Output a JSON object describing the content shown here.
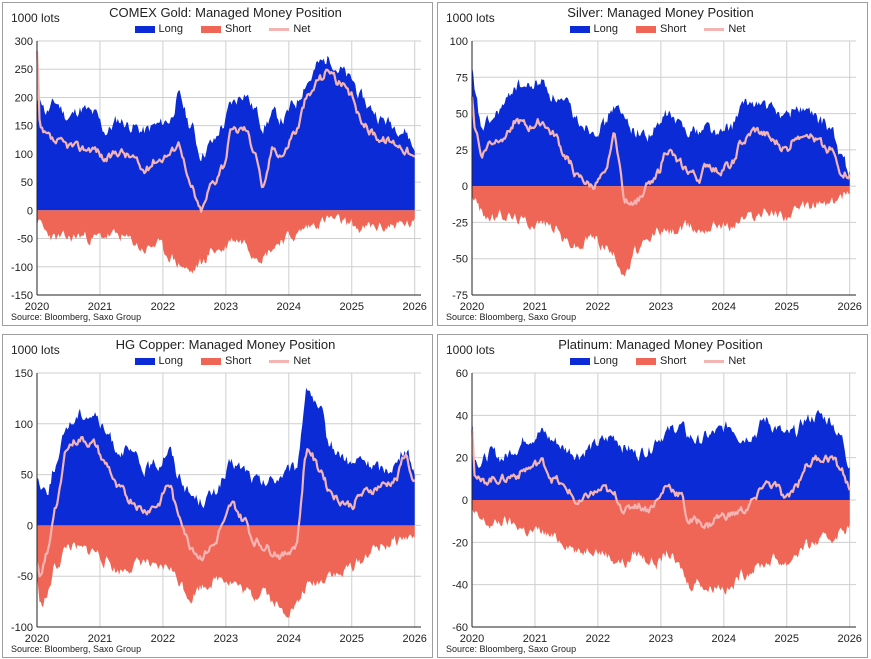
{
  "colors": {
    "long": "#0a2bd6",
    "short": "#ef6656",
    "net": "#f4b4b4",
    "grid": "#cfcfcf",
    "axis": "#222222"
  },
  "legend": {
    "long": "Long",
    "short": "Short",
    "net": "Net"
  },
  "chart_data": [
    {
      "type": "area",
      "title": "COMEX Gold: Managed Money Position",
      "unit_label": "1000 lots",
      "source": "Source:  Bloomberg,  Saxo Group",
      "ylim": [
        -150,
        300
      ],
      "yticks": [
        -150,
        -100,
        -50,
        0,
        50,
        100,
        150,
        200,
        250,
        300
      ],
      "x_range": [
        2020.0,
        2026.1
      ],
      "xticks": [
        2020,
        2021,
        2022,
        2023,
        2024,
        2025,
        2026
      ],
      "xtick_labels": [
        "2020",
        "2021",
        "2022",
        "2023",
        "2024",
        "2025",
        "2026"
      ],
      "anchors": {
        "x": [
          2020.0,
          2020.05,
          2020.15,
          2020.3,
          2020.5,
          2020.7,
          2020.9,
          2021.1,
          2021.3,
          2021.5,
          2021.7,
          2021.9,
          2022.1,
          2022.25,
          2022.45,
          2022.6,
          2022.8,
          2022.95,
          2023.1,
          2023.3,
          2023.45,
          2023.6,
          2023.75,
          2023.9,
          2024.1,
          2024.3,
          2024.5,
          2024.65,
          2024.8,
          2025.0,
          2025.15,
          2025.3,
          2025.5,
          2025.7,
          2025.85,
          2026.0
        ],
        "long": [
          185,
          200,
          175,
          190,
          165,
          180,
          170,
          140,
          160,
          150,
          140,
          150,
          160,
          200,
          150,
          100,
          120,
          150,
          190,
          210,
          180,
          150,
          170,
          160,
          190,
          230,
          260,
          270,
          250,
          230,
          200,
          180,
          160,
          150,
          140,
          110
        ],
        "short": [
          -20,
          -25,
          -40,
          -50,
          -50,
          -45,
          -50,
          -45,
          -45,
          -55,
          -70,
          -60,
          -80,
          -95,
          -110,
          -95,
          -70,
          -70,
          -50,
          -55,
          -75,
          -80,
          -65,
          -50,
          -45,
          -30,
          -20,
          -15,
          -20,
          -25,
          -35,
          -30,
          -30,
          -25,
          -25,
          -25
        ],
        "net": [
          280,
          140,
          130,
          120,
          115,
          110,
          110,
          90,
          105,
          95,
          70,
          90,
          100,
          120,
          40,
          0,
          50,
          80,
          140,
          145,
          110,
          40,
          110,
          100,
          140,
          200,
          235,
          250,
          225,
          200,
          160,
          140,
          125,
          120,
          110,
          90
        ]
      }
    },
    {
      "type": "area",
      "title": "Silver: Managed Money Position",
      "unit_label": "1000 lots",
      "source": "Source:  Bloomberg,  Saxo Group",
      "ylim": [
        -75,
        100
      ],
      "yticks": [
        -75,
        -50,
        -25,
        0,
        25,
        50,
        75,
        100
      ],
      "x_range": [
        2020.0,
        2026.1
      ],
      "xticks": [
        2020,
        2021,
        2022,
        2023,
        2024,
        2025,
        2026
      ],
      "xtick_labels": [
        "2020",
        "2021",
        "2022",
        "2023",
        "2024",
        "2025",
        "2026"
      ],
      "anchors": {
        "x": [
          2020.0,
          2020.05,
          2020.15,
          2020.3,
          2020.5,
          2020.7,
          2020.9,
          2021.1,
          2021.3,
          2021.5,
          2021.7,
          2021.9,
          2022.1,
          2022.25,
          2022.45,
          2022.6,
          2022.8,
          2022.95,
          2023.1,
          2023.3,
          2023.45,
          2023.6,
          2023.75,
          2023.9,
          2024.1,
          2024.3,
          2024.5,
          2024.65,
          2024.8,
          2025.0,
          2025.15,
          2025.3,
          2025.5,
          2025.7,
          2025.85,
          2026.0
        ],
        "long": [
          80,
          60,
          40,
          45,
          55,
          70,
          68,
          72,
          62,
          55,
          45,
          40,
          42,
          55,
          45,
          38,
          35,
          40,
          50,
          42,
          40,
          38,
          42,
          35,
          40,
          55,
          58,
          55,
          52,
          48,
          55,
          52,
          45,
          40,
          20,
          12
        ],
        "short": [
          -5,
          -10,
          -18,
          -22,
          -20,
          -22,
          -25,
          -25,
          -28,
          -38,
          -42,
          -35,
          -40,
          -48,
          -60,
          -45,
          -40,
          -30,
          -32,
          -30,
          -28,
          -30,
          -28,
          -25,
          -28,
          -22,
          -20,
          -18,
          -18,
          -20,
          -18,
          -15,
          -12,
          -12,
          -8,
          -2
        ],
        "net": [
          60,
          40,
          22,
          30,
          35,
          45,
          40,
          45,
          35,
          20,
          5,
          0,
          5,
          35,
          -10,
          -10,
          0,
          10,
          25,
          15,
          10,
          5,
          15,
          10,
          15,
          30,
          38,
          35,
          30,
          25,
          35,
          38,
          30,
          25,
          10,
          8
        ]
      }
    },
    {
      "type": "area",
      "title": "HG Copper: Managed Money Position",
      "unit_label": "1000 lots",
      "source": "Source:  Bloomberg,  Saxo Group",
      "ylim": [
        -100,
        150
      ],
      "yticks": [
        -100,
        -50,
        0,
        50,
        100,
        150
      ],
      "x_range": [
        2020.0,
        2026.1
      ],
      "xticks": [
        2020,
        2021,
        2022,
        2023,
        2024,
        2025,
        2026
      ],
      "xtick_labels": [
        "2020",
        "2021",
        "2022",
        "2023",
        "2024",
        "2025",
        "2026"
      ],
      "anchors": {
        "x": [
          2020.0,
          2020.05,
          2020.15,
          2020.3,
          2020.5,
          2020.7,
          2020.9,
          2021.1,
          2021.3,
          2021.5,
          2021.7,
          2021.9,
          2022.1,
          2022.25,
          2022.45,
          2022.6,
          2022.8,
          2022.95,
          2023.1,
          2023.3,
          2023.45,
          2023.6,
          2023.75,
          2023.9,
          2024.1,
          2024.3,
          2024.5,
          2024.65,
          2024.8,
          2025.0,
          2025.15,
          2025.3,
          2025.5,
          2025.7,
          2025.85,
          2026.0
        ],
        "long": [
          50,
          40,
          35,
          60,
          100,
          110,
          110,
          90,
          75,
          70,
          55,
          60,
          75,
          50,
          30,
          25,
          30,
          45,
          60,
          55,
          45,
          40,
          45,
          50,
          55,
          135,
          110,
          80,
          70,
          60,
          65,
          60,
          55,
          60,
          75,
          55
        ],
        "short": [
          -50,
          -80,
          -70,
          -40,
          -20,
          -25,
          -25,
          -35,
          -45,
          -40,
          -35,
          -45,
          -40,
          -55,
          -70,
          -60,
          -55,
          -50,
          -55,
          -65,
          -70,
          -60,
          -75,
          -85,
          -80,
          -60,
          -55,
          -45,
          -50,
          -40,
          -35,
          -25,
          -20,
          -15,
          -12,
          -12
        ],
        "net": [
          -40,
          -55,
          -30,
          20,
          80,
          85,
          80,
          60,
          35,
          25,
          15,
          20,
          40,
          10,
          -20,
          -30,
          -20,
          0,
          20,
          5,
          -15,
          -20,
          -25,
          -30,
          -20,
          75,
          55,
          35,
          25,
          20,
          30,
          35,
          40,
          45,
          70,
          40
        ]
      }
    },
    {
      "type": "area",
      "title": "Platinum: Managed Money Position",
      "unit_label": "1000 lots",
      "source": "Source:  Bloomberg,  Saxo Group",
      "ylim": [
        -60,
        60
      ],
      "yticks": [
        -60,
        -40,
        -20,
        0,
        20,
        40,
        60
      ],
      "x_range": [
        2020.0,
        2026.1
      ],
      "xticks": [
        2020,
        2021,
        2022,
        2023,
        2024,
        2025,
        2026
      ],
      "xtick_labels": [
        "2020",
        "2021",
        "2022",
        "2023",
        "2024",
        "2025",
        "2026"
      ],
      "anchors": {
        "x": [
          2020.0,
          2020.05,
          2020.15,
          2020.3,
          2020.5,
          2020.7,
          2020.9,
          2021.1,
          2021.3,
          2021.5,
          2021.7,
          2021.9,
          2022.1,
          2022.25,
          2022.45,
          2022.6,
          2022.8,
          2022.95,
          2023.1,
          2023.3,
          2023.45,
          2023.6,
          2023.75,
          2023.9,
          2024.1,
          2024.3,
          2024.5,
          2024.65,
          2024.8,
          2025.0,
          2025.15,
          2025.3,
          2025.5,
          2025.7,
          2025.85,
          2026.0
        ],
        "long": [
          38,
          20,
          18,
          22,
          20,
          25,
          30,
          32,
          28,
          24,
          22,
          25,
          28,
          30,
          25,
          22,
          24,
          30,
          32,
          35,
          30,
          28,
          30,
          32,
          35,
          30,
          32,
          38,
          35,
          30,
          32,
          38,
          40,
          38,
          30,
          18
        ],
        "short": [
          -5,
          -8,
          -10,
          -12,
          -10,
          -12,
          -15,
          -15,
          -18,
          -20,
          -25,
          -22,
          -25,
          -28,
          -30,
          -25,
          -28,
          -30,
          -25,
          -32,
          -40,
          -38,
          -42,
          -40,
          -42,
          -35,
          -32,
          -30,
          -28,
          -30,
          -25,
          -22,
          -20,
          -18,
          -15,
          -12
        ],
        "net": [
          35,
          12,
          8,
          10,
          10,
          12,
          15,
          18,
          10,
          5,
          -2,
          3,
          5,
          2,
          -5,
          -2,
          -4,
          0,
          7,
          3,
          -10,
          -10,
          -12,
          -8,
          -7,
          -5,
          0,
          8,
          7,
          0,
          7,
          16,
          20,
          20,
          15,
          6
        ]
      }
    }
  ]
}
